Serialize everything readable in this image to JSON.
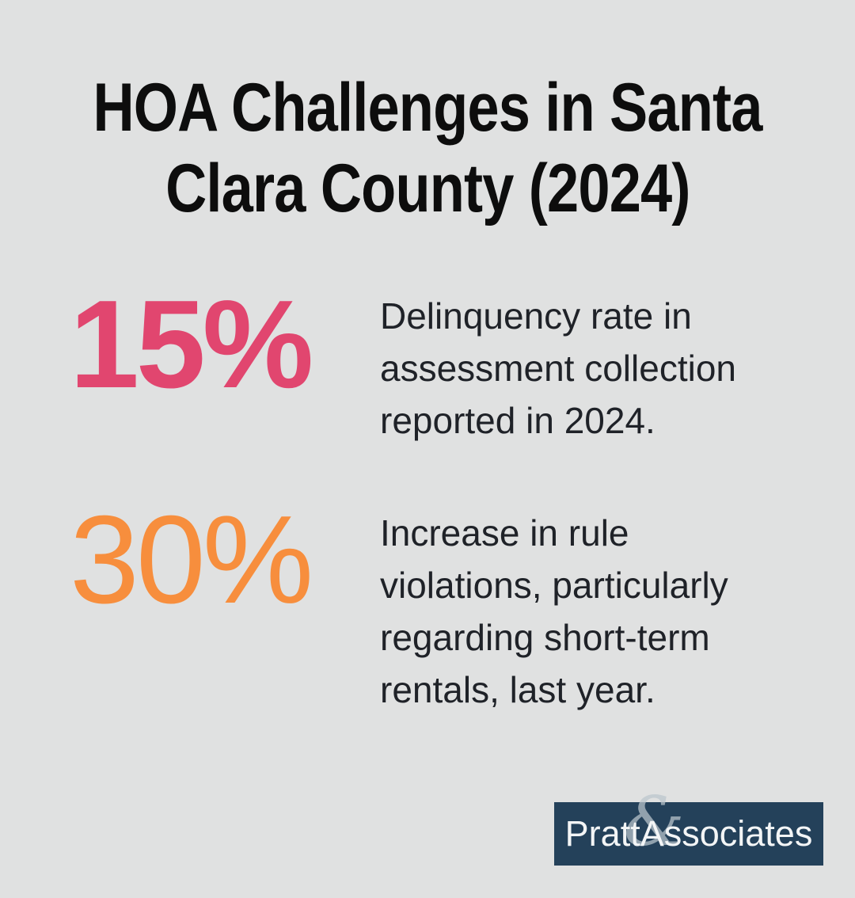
{
  "canvas": {
    "background": "#e0e1e1"
  },
  "title": {
    "line1": "HOA Challenges in Santa",
    "line2": "Clara County (2024)",
    "color": "#0d0d0d"
  },
  "stats": [
    {
      "value": "15%",
      "color": "#e1466f",
      "lines": [
        "Delinquency rate in",
        "assessment collection",
        "reported in 2024."
      ]
    },
    {
      "value": "30%",
      "color": "#f78e3d",
      "lines": [
        "Increase in rule",
        "violations, particularly",
        "regarding short-term",
        "rentals, last year."
      ]
    }
  ],
  "body_text_color": "#1f2228",
  "footer_logo": {
    "background": "#24415a",
    "text_left": "Pratt",
    "ampersand": "&",
    "text_right": "Associates",
    "text_color": "#f3f5f6",
    "flourish_color": "#bcc6cd"
  },
  "chart_data": {
    "type": "table",
    "title": "HOA Challenges in Santa Clara County (2024)",
    "categories": [
      "Delinquency rate in assessment collection reported in 2024.",
      "Increase in rule violations, particularly regarding short-term rentals, last year."
    ],
    "values": [
      15,
      30
    ],
    "value_labels": [
      "15%",
      "30%"
    ],
    "value_colors": [
      "#e1466f",
      "#f78e3d"
    ],
    "source_brand": "Pratt&Associates"
  }
}
